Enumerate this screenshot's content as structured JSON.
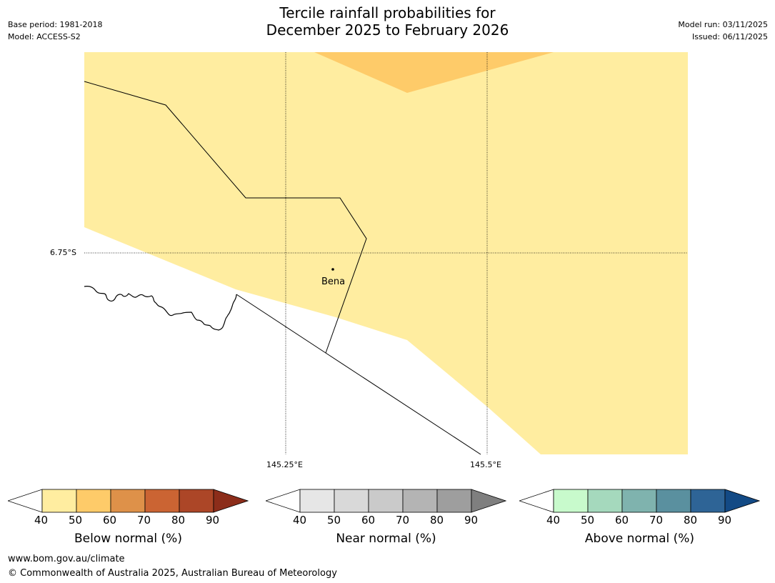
{
  "header": {
    "base_period": "Base period: 1981-2018",
    "model": "Model: ACCESS-S2",
    "title_line1": "Tercile rainfall probabilities for",
    "title_line2": "December 2025 to February 2026",
    "model_run": "Model run: 03/11/2025",
    "issued": "Issued: 06/11/2025"
  },
  "map": {
    "place_label": "Bena",
    "lat_label": "6.75°S",
    "lon_labels": [
      "145.25°E",
      "145.5°E"
    ],
    "colors": {
      "below_50": "#FFEDA0",
      "below_60": "#FECB69"
    }
  },
  "legends": [
    {
      "label": "Below normal (%)",
      "ticks": [
        "40",
        "50",
        "60",
        "70",
        "80",
        "90"
      ],
      "colors": [
        "#FFFFFF",
        "#FFEDA0",
        "#FECB69",
        "#DE9149",
        "#CB6433",
        "#AC4627",
        "#8C2D1A"
      ]
    },
    {
      "label": "Near normal (%)",
      "ticks": [
        "40",
        "50",
        "60",
        "70",
        "80",
        "90"
      ],
      "colors": [
        "#FFFFFF",
        "#E6E6E6",
        "#D9D9D9",
        "#CACACA",
        "#B4B4B4",
        "#9E9E9E",
        "#7F7F7F"
      ]
    },
    {
      "label": "Above normal (%)",
      "ticks": [
        "40",
        "50",
        "60",
        "70",
        "80",
        "90"
      ],
      "colors": [
        "#FFFFFF",
        "#C8FACC",
        "#A5D9BD",
        "#7FB3AE",
        "#5A909F",
        "#2E6496",
        "#134A85"
      ]
    }
  ],
  "footer": {
    "url": "www.bom.gov.au/climate",
    "copyright": "© Commonwealth of Australia 2025, Australian Bureau of Meteorology"
  }
}
